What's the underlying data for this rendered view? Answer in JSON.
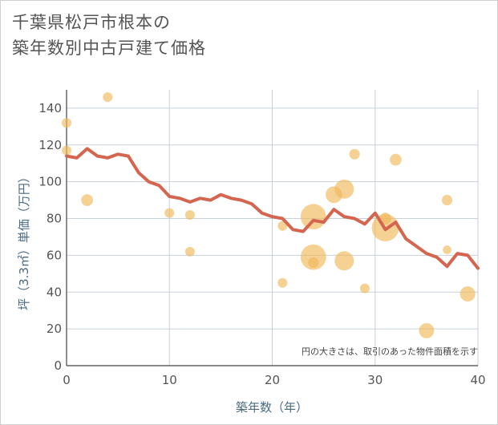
{
  "title_line1": "千葉県松戸市根本の",
  "title_line2": "築年数別中古戸建て価格",
  "chart_data": {
    "type": "scatter",
    "xlabel": "築年数（年）",
    "ylabel": "坪（3.3㎡）単価（万円）",
    "xlim": [
      0,
      40
    ],
    "ylim": [
      0,
      150
    ],
    "x_ticks": [
      "0",
      "10",
      "20",
      "30",
      "40"
    ],
    "y_ticks": [
      "0",
      "20",
      "40",
      "60",
      "80",
      "100",
      "120",
      "140"
    ],
    "grid": true,
    "annotation": "円の大きさは、取引のあった物件面積を示す",
    "colors": {
      "bubble": "#f0b85a",
      "line": "#d4654f",
      "grid": "#c8d0d8",
      "axis_text": "#555555"
    },
    "series": [
      {
        "type": "bubble",
        "points": [
          {
            "x": 0,
            "y": 132,
            "s": 1
          },
          {
            "x": 0,
            "y": 117,
            "s": 1
          },
          {
            "x": 2,
            "y": 90,
            "s": 1.5
          },
          {
            "x": 4,
            "y": 146,
            "s": 1
          },
          {
            "x": 10,
            "y": 83,
            "s": 1
          },
          {
            "x": 12,
            "y": 82,
            "s": 1
          },
          {
            "x": 12,
            "y": 62,
            "s": 1
          },
          {
            "x": 21,
            "y": 76,
            "s": 1
          },
          {
            "x": 21,
            "y": 45,
            "s": 1
          },
          {
            "x": 24,
            "y": 81,
            "s": 7
          },
          {
            "x": 24,
            "y": 59,
            "s": 7
          },
          {
            "x": 24,
            "y": 56,
            "s": 1.2
          },
          {
            "x": 26,
            "y": 93,
            "s": 3
          },
          {
            "x": 27,
            "y": 96,
            "s": 4
          },
          {
            "x": 27,
            "y": 57,
            "s": 4
          },
          {
            "x": 28,
            "y": 115,
            "s": 1.2
          },
          {
            "x": 29,
            "y": 42,
            "s": 1
          },
          {
            "x": 31,
            "y": 80,
            "s": 1.5
          },
          {
            "x": 31,
            "y": 75,
            "s": 8
          },
          {
            "x": 32,
            "y": 112,
            "s": 1.5
          },
          {
            "x": 35,
            "y": 19,
            "s": 2.5
          },
          {
            "x": 37,
            "y": 90,
            "s": 1.2
          },
          {
            "x": 37,
            "y": 63,
            "s": 0.8
          },
          {
            "x": 39,
            "y": 39,
            "s": 2.5
          }
        ]
      },
      {
        "type": "line",
        "x": [
          0,
          1,
          2,
          3,
          4,
          5,
          6,
          7,
          8,
          9,
          10,
          11,
          12,
          13,
          14,
          15,
          16,
          17,
          18,
          19,
          20,
          21,
          22,
          23,
          24,
          25,
          26,
          27,
          28,
          29,
          30,
          31,
          32,
          33,
          34,
          35,
          36,
          37,
          38,
          39,
          40
        ],
        "y": [
          114,
          113,
          118,
          114,
          113,
          115,
          114,
          105,
          100,
          98,
          92,
          91,
          89,
          91,
          90,
          93,
          91,
          90,
          88,
          83,
          81,
          80,
          74,
          73,
          79,
          78,
          85,
          81,
          80,
          77,
          83,
          74,
          78,
          69,
          65,
          61,
          59,
          54,
          61,
          60,
          53
        ]
      }
    ]
  }
}
